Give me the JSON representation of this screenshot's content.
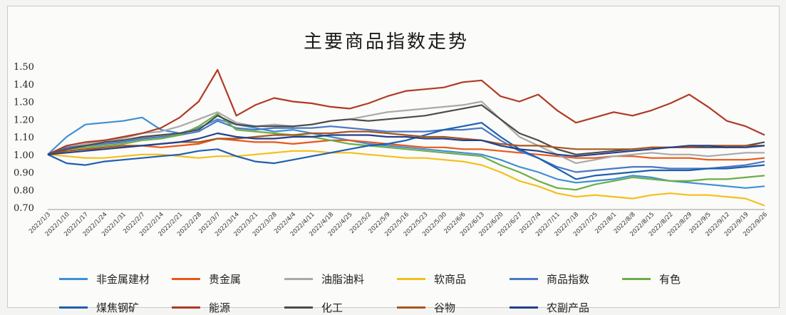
{
  "chart_data": {
    "type": "line",
    "title": "主要商品指数走势",
    "xlabel": "",
    "ylabel": "",
    "ylim": [
      0.7,
      1.5
    ],
    "yticks": [
      "1.50",
      "1.40",
      "1.30",
      "1.20",
      "1.10",
      "1.00",
      "0.90",
      "0.80",
      "0.70"
    ],
    "grid": false,
    "legend_position": "bottom",
    "x_ticks": [
      "2022/1/3",
      "2022/1/10",
      "2022/1/17",
      "2022/1/24",
      "2022/1/31",
      "2022/2/7",
      "2022/2/14",
      "2022/2/21",
      "2022/2/28",
      "2022/3/7",
      "2022/3/14",
      "2022/3/21",
      "2022/3/28",
      "2022/4/4",
      "2022/4/11",
      "2022/4/18",
      "2022/4/25",
      "2022/5/2",
      "2022/5/9",
      "2022/5/16",
      "2022/5/23",
      "2022/5/30",
      "2022/6/6",
      "2022/6/13",
      "2022/6/20",
      "2022/6/27",
      "2022/7/4",
      "2022/7/11",
      "2022/7/18",
      "2022/7/25",
      "2022/8/1",
      "2022/8/8",
      "2022/8/15",
      "2022/8/22",
      "2022/8/29",
      "2022/9/5",
      "2022/9/12",
      "2022/9/19",
      "2022/9/26"
    ],
    "series": [
      {
        "name": "非金属建材",
        "color": "#3f8fd6",
        "values": [
          1.0,
          1.1,
          1.17,
          1.18,
          1.19,
          1.21,
          1.14,
          1.12,
          1.15,
          1.2,
          1.17,
          1.15,
          1.13,
          1.14,
          1.12,
          1.1,
          1.08,
          1.06,
          1.05,
          1.04,
          1.03,
          1.02,
          1.01,
          1.0,
          0.97,
          0.93,
          0.9,
          0.86,
          0.84,
          0.85,
          0.86,
          0.88,
          0.87,
          0.85,
          0.84,
          0.83,
          0.82,
          0.81,
          0.82
        ]
      },
      {
        "name": "贵金属",
        "color": "#e8581c",
        "values": [
          1.0,
          1.02,
          1.03,
          1.03,
          1.04,
          1.05,
          1.04,
          1.05,
          1.06,
          1.09,
          1.08,
          1.07,
          1.07,
          1.06,
          1.07,
          1.08,
          1.08,
          1.07,
          1.06,
          1.05,
          1.04,
          1.04,
          1.03,
          1.03,
          1.02,
          1.01,
          1.0,
          0.99,
          0.98,
          0.98,
          0.99,
          0.99,
          0.98,
          0.98,
          0.98,
          0.97,
          0.97,
          0.97,
          0.98
        ]
      },
      {
        "name": "油脂油料",
        "color": "#a9a9a9",
        "values": [
          1.0,
          1.04,
          1.06,
          1.08,
          1.09,
          1.12,
          1.13,
          1.16,
          1.2,
          1.24,
          1.18,
          1.16,
          1.17,
          1.16,
          1.17,
          1.19,
          1.2,
          1.22,
          1.24,
          1.25,
          1.26,
          1.27,
          1.28,
          1.3,
          1.2,
          1.1,
          1.05,
          1.0,
          0.95,
          0.97,
          0.99,
          1.0,
          1.01,
          1.0,
          1.0,
          0.99,
          1.0,
          1.01,
          1.01
        ]
      },
      {
        "name": "软商品",
        "color": "#f5bf1a",
        "values": [
          1.0,
          0.99,
          0.98,
          0.98,
          0.99,
          1.0,
          1.0,
          0.99,
          0.98,
          0.99,
          0.99,
          1.0,
          1.01,
          1.02,
          1.02,
          1.01,
          1.01,
          1.0,
          0.99,
          0.98,
          0.98,
          0.97,
          0.96,
          0.94,
          0.9,
          0.85,
          0.82,
          0.78,
          0.76,
          0.77,
          0.76,
          0.75,
          0.77,
          0.78,
          0.77,
          0.77,
          0.76,
          0.75,
          0.71
        ]
      },
      {
        "name": "商品指数",
        "color": "#4a77c7",
        "values": [
          1.0,
          1.04,
          1.05,
          1.06,
          1.07,
          1.09,
          1.1,
          1.11,
          1.13,
          1.19,
          1.15,
          1.14,
          1.15,
          1.15,
          1.15,
          1.16,
          1.15,
          1.14,
          1.13,
          1.13,
          1.13,
          1.14,
          1.14,
          1.15,
          1.08,
          1.02,
          0.98,
          0.93,
          0.9,
          0.91,
          0.92,
          0.93,
          0.93,
          0.92,
          0.92,
          0.92,
          0.93,
          0.94,
          0.96
        ]
      },
      {
        "name": "有色",
        "color": "#6cae46",
        "values": [
          1.0,
          1.03,
          1.04,
          1.05,
          1.06,
          1.08,
          1.09,
          1.11,
          1.16,
          1.23,
          1.14,
          1.13,
          1.12,
          1.11,
          1.1,
          1.08,
          1.06,
          1.05,
          1.04,
          1.03,
          1.02,
          1.01,
          1.0,
          0.99,
          0.94,
          0.9,
          0.85,
          0.81,
          0.8,
          0.83,
          0.85,
          0.87,
          0.86,
          0.85,
          0.85,
          0.86,
          0.86,
          0.87,
          0.88
        ]
      },
      {
        "name": "煤焦钢矿",
        "color": "#1f5fb0",
        "values": [
          1.0,
          0.95,
          0.94,
          0.96,
          0.97,
          0.98,
          0.99,
          1.0,
          1.02,
          1.03,
          0.99,
          0.96,
          0.95,
          0.97,
          0.99,
          1.01,
          1.03,
          1.05,
          1.06,
          1.08,
          1.11,
          1.14,
          1.16,
          1.18,
          1.1,
          1.03,
          0.98,
          0.92,
          0.86,
          0.88,
          0.89,
          0.9,
          0.91,
          0.91,
          0.91,
          0.92,
          0.92,
          0.93,
          0.94
        ]
      },
      {
        "name": "能源",
        "color": "#b03a24",
        "values": [
          1.0,
          1.05,
          1.07,
          1.08,
          1.1,
          1.12,
          1.15,
          1.21,
          1.3,
          1.48,
          1.22,
          1.28,
          1.32,
          1.3,
          1.29,
          1.27,
          1.26,
          1.29,
          1.33,
          1.36,
          1.37,
          1.38,
          1.41,
          1.42,
          1.33,
          1.3,
          1.34,
          1.25,
          1.18,
          1.21,
          1.24,
          1.22,
          1.25,
          1.29,
          1.34,
          1.27,
          1.19,
          1.16,
          1.11
        ]
      },
      {
        "name": "化工",
        "color": "#4b4b4b",
        "values": [
          1.0,
          1.03,
          1.05,
          1.07,
          1.08,
          1.1,
          1.11,
          1.12,
          1.14,
          1.22,
          1.17,
          1.16,
          1.16,
          1.16,
          1.17,
          1.19,
          1.2,
          1.19,
          1.2,
          1.21,
          1.22,
          1.24,
          1.26,
          1.28,
          1.2,
          1.12,
          1.08,
          1.03,
          1.0,
          1.01,
          1.02,
          1.03,
          1.04,
          1.04,
          1.04,
          1.04,
          1.04,
          1.05,
          1.07
        ]
      },
      {
        "name": "谷物",
        "color": "#a8571c",
        "values": [
          1.0,
          1.02,
          1.03,
          1.04,
          1.05,
          1.05,
          1.06,
          1.07,
          1.07,
          1.09,
          1.09,
          1.1,
          1.11,
          1.11,
          1.12,
          1.12,
          1.13,
          1.13,
          1.12,
          1.11,
          1.1,
          1.1,
          1.09,
          1.08,
          1.06,
          1.05,
          1.05,
          1.04,
          1.03,
          1.03,
          1.03,
          1.03,
          1.04,
          1.04,
          1.04,
          1.05,
          1.05,
          1.05,
          1.05
        ]
      },
      {
        "name": "农副产品",
        "color": "#23408e",
        "values": [
          1.0,
          1.01,
          1.02,
          1.03,
          1.04,
          1.05,
          1.06,
          1.07,
          1.09,
          1.12,
          1.1,
          1.09,
          1.09,
          1.1,
          1.1,
          1.11,
          1.11,
          1.11,
          1.1,
          1.1,
          1.09,
          1.09,
          1.08,
          1.08,
          1.05,
          1.03,
          1.02,
          1.0,
          0.99,
          1.0,
          1.01,
          1.02,
          1.03,
          1.04,
          1.05,
          1.05,
          1.04,
          1.04,
          1.05
        ]
      }
    ]
  }
}
